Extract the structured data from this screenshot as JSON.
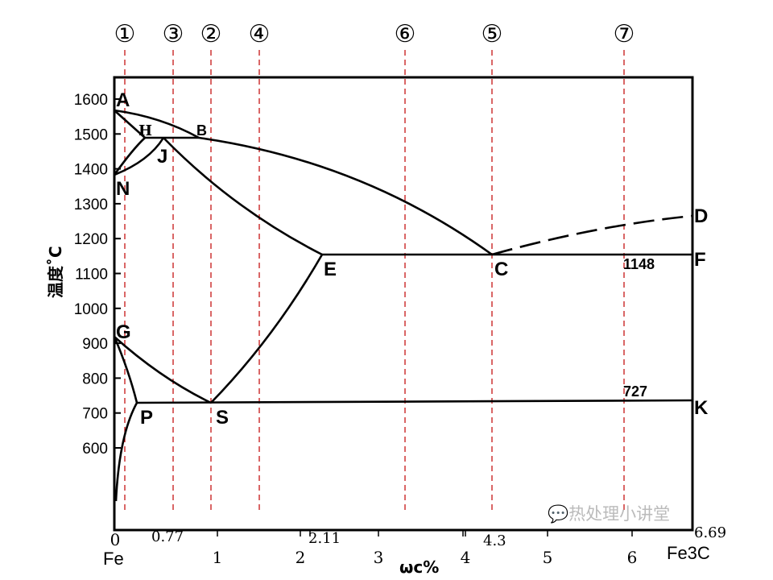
{
  "ylabel": "温度˚C",
  "xlabel": "ωc%",
  "y_ticks": [
    "1600",
    "1500",
    "1400",
    "1300",
    "1200",
    "1100",
    "1000",
    "900",
    "800",
    "700",
    "600"
  ],
  "x_ticks": [
    "1",
    "2",
    "3",
    "4",
    "5",
    "6"
  ],
  "x_special": {
    "zero": "0",
    "fe": "Fe",
    "c077": "0.77",
    "c211": "2.11",
    "c43": "4.3",
    "c669": "6.69",
    "fe3c": "Fe3C"
  },
  "points": {
    "A": "A",
    "H": "H",
    "B": "B",
    "J": "J",
    "N": "N",
    "E": "E",
    "C": "C",
    "D": "D",
    "F": "F",
    "G": "G",
    "P": "P",
    "S": "S",
    "K": "K"
  },
  "temps": {
    "eutectic": "1148",
    "eutectoid": "727"
  },
  "alloy_markers": [
    "①",
    "③",
    "②",
    "④",
    "⑥",
    "⑤",
    "⑦"
  ],
  "watermark": "热处理小讲堂",
  "colors": {
    "lines": "#000000",
    "alloy_dash": "#c00000"
  }
}
